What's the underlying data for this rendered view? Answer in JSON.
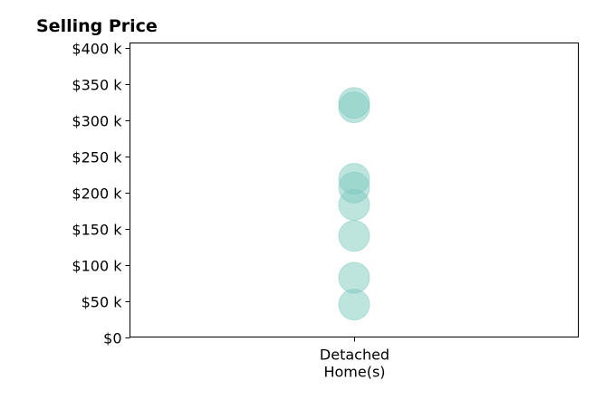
{
  "chart_data": {
    "type": "scatter",
    "title": "Selling Price",
    "xlabel": "",
    "ylabel": "",
    "categories": [
      "Detached Home(s)"
    ],
    "category_label_lines": [
      "Detached",
      "Home(s)"
    ],
    "y_ticks": [
      {
        "value": 0,
        "label": "$0"
      },
      {
        "value": 50000,
        "label": "$50 k"
      },
      {
        "value": 100000,
        "label": "$100 k"
      },
      {
        "value": 150000,
        "label": "$150 k"
      },
      {
        "value": 200000,
        "label": "$200 k"
      },
      {
        "value": 250000,
        "label": "$250 k"
      },
      {
        "value": 300000,
        "label": "$300 k"
      },
      {
        "value": 350000,
        "label": "$350 k"
      },
      {
        "value": 400000,
        "label": "$400 k"
      }
    ],
    "ylim": [
      0,
      407000
    ],
    "grid": false,
    "legend": "none",
    "series": [
      {
        "category": "Detached Home(s)",
        "values": [
          45000,
          82000,
          140000,
          183000,
          207000,
          219000,
          318000,
          324000
        ]
      }
    ],
    "marker_color": "#7ec9bd",
    "marker_opacity": 0.5
  }
}
